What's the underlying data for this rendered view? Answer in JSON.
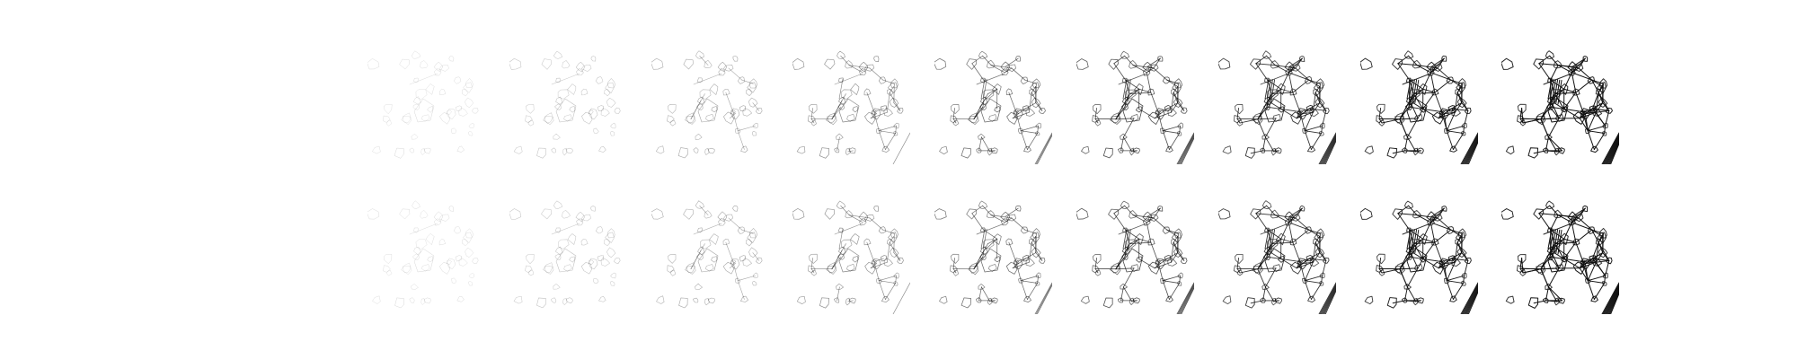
{
  "figure": {
    "rows": 2,
    "columns": 9,
    "panel_type": "sketch-stroke-progression",
    "stroke_color": "#111111",
    "background_color": "#ffffff",
    "progress_levels": [
      0.06,
      0.16,
      0.28,
      0.4,
      0.53,
      0.66,
      0.78,
      0.89,
      1.0
    ]
  }
}
